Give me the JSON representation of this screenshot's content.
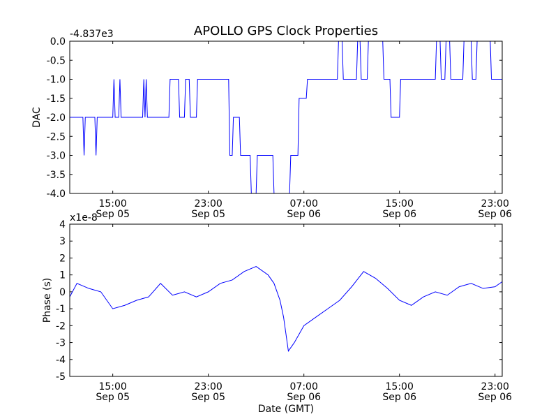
{
  "chart_data": [
    {
      "type": "line",
      "title": "APOLLO GPS Clock Properties",
      "offset_label": "-4.837e3",
      "xlabel": "",
      "ylabel": "DAC",
      "ylim": [
        -4.0,
        0.0
      ],
      "yticks": [
        "0.0",
        "-0.5",
        "-1.0",
        "-1.5",
        "-2.0",
        "-2.5",
        "-3.0",
        "-3.5",
        "-4.0"
      ],
      "xlim_hours_gmt": [
        11.4,
        47.6
      ],
      "xticks": [
        {
          "time": "15:00",
          "date": "Sep 05"
        },
        {
          "time": "23:00",
          "date": "Sep 05"
        },
        {
          "time": "07:00",
          "date": "Sep 06"
        },
        {
          "time": "15:00",
          "date": "Sep 06"
        },
        {
          "time": "23:00",
          "date": "Sep 06"
        }
      ],
      "series": [
        {
          "color": "#0000ff",
          "x_hours_gmt": [
            11.4,
            12.5,
            12.6,
            12.7,
            13.5,
            13.6,
            13.7,
            15.0,
            15.1,
            15.2,
            15.5,
            15.6,
            15.7,
            17.5,
            17.6,
            17.7,
            17.8,
            17.9,
            18.0,
            19.7,
            19.8,
            20.5,
            20.6,
            21.0,
            21.1,
            21.4,
            21.5,
            22.0,
            22.1,
            24.7,
            24.8,
            25.0,
            25.1,
            25.6,
            25.7,
            26.5,
            26.6,
            27.0,
            27.1,
            28.4,
            28.5,
            29.8,
            29.9,
            30.5,
            30.6,
            31.2,
            31.3,
            33.8,
            33.9,
            34.2,
            34.3,
            35.4,
            35.5,
            35.7,
            35.8,
            36.3,
            36.4,
            37.6,
            37.7,
            38.2,
            38.3,
            39.0,
            39.1,
            42.0,
            42.1,
            42.4,
            42.5,
            42.8,
            42.9,
            43.2,
            43.3,
            44.3,
            44.4,
            45.0,
            45.1,
            45.4,
            45.5,
            46.6,
            46.7,
            47.6
          ],
          "y": [
            -2.0,
            -2.0,
            -3.0,
            -2.0,
            -2.0,
            -3.0,
            -2.0,
            -2.0,
            -1.0,
            -2.0,
            -2.0,
            -1.0,
            -2.0,
            -2.0,
            -1.0,
            -2.0,
            -1.0,
            -2.0,
            -2.0,
            -2.0,
            -1.0,
            -1.0,
            -2.0,
            -2.0,
            -1.0,
            -1.0,
            -2.0,
            -2.0,
            -1.0,
            -1.0,
            -3.0,
            -3.0,
            -2.0,
            -2.0,
            -3.0,
            -3.0,
            -4.0,
            -4.0,
            -3.0,
            -3.0,
            -4.0,
            -4.0,
            -3.0,
            -3.0,
            -1.5,
            -1.5,
            -1.0,
            -1.0,
            0.0,
            0.0,
            -1.0,
            -1.0,
            0.0,
            0.0,
            -1.0,
            -1.0,
            0.0,
            0.0,
            -1.0,
            -1.0,
            -2.0,
            -2.0,
            -1.0,
            -1.0,
            0.0,
            0.0,
            -1.0,
            -1.0,
            0.0,
            0.0,
            -1.0,
            -1.0,
            0.0,
            0.0,
            -1.0,
            -1.0,
            0.0,
            0.0,
            -1.0,
            -1.0
          ]
        }
      ]
    },
    {
      "type": "line",
      "title": "",
      "offset_label": "x1e-8",
      "xlabel": "Date (GMT)",
      "ylabel": "Phase (s)",
      "ylim": [
        -5,
        4
      ],
      "yticks": [
        "4",
        "3",
        "2",
        "1",
        "0",
        "-1",
        "-2",
        "-3",
        "-4",
        "-5"
      ],
      "xlim_hours_gmt": [
        11.4,
        47.6
      ],
      "xticks": [
        {
          "time": "15:00",
          "date": "Sep 05"
        },
        {
          "time": "23:00",
          "date": "Sep 05"
        },
        {
          "time": "07:00",
          "date": "Sep 06"
        },
        {
          "time": "15:00",
          "date": "Sep 06"
        },
        {
          "time": "23:00",
          "date": "Sep 06"
        }
      ],
      "series": [
        {
          "color": "#0000ff",
          "x_hours_gmt": [
            11.4,
            12.0,
            13.0,
            14.0,
            15.0,
            16.0,
            17.0,
            18.0,
            19.0,
            20.0,
            21.0,
            22.0,
            23.0,
            24.0,
            25.0,
            26.0,
            27.0,
            28.0,
            28.5,
            29.0,
            29.3,
            29.7,
            30.2,
            31.0,
            32.0,
            33.0,
            34.0,
            35.0,
            36.0,
            37.0,
            38.0,
            39.0,
            40.0,
            41.0,
            42.0,
            43.0,
            44.0,
            45.0,
            46.0,
            47.0,
            47.6
          ],
          "y": [
            -0.3,
            0.5,
            0.2,
            0.0,
            -1.0,
            -0.8,
            -0.5,
            -0.3,
            0.5,
            -0.2,
            0.0,
            -0.3,
            0.0,
            0.5,
            0.7,
            1.2,
            1.5,
            1.0,
            0.5,
            -0.5,
            -1.5,
            -3.5,
            -3.0,
            -2.0,
            -1.5,
            -1.0,
            -0.5,
            0.3,
            1.2,
            0.8,
            0.2,
            -0.5,
            -0.8,
            -0.3,
            0.0,
            -0.2,
            0.3,
            0.5,
            0.2,
            0.3,
            0.6
          ]
        }
      ]
    }
  ]
}
